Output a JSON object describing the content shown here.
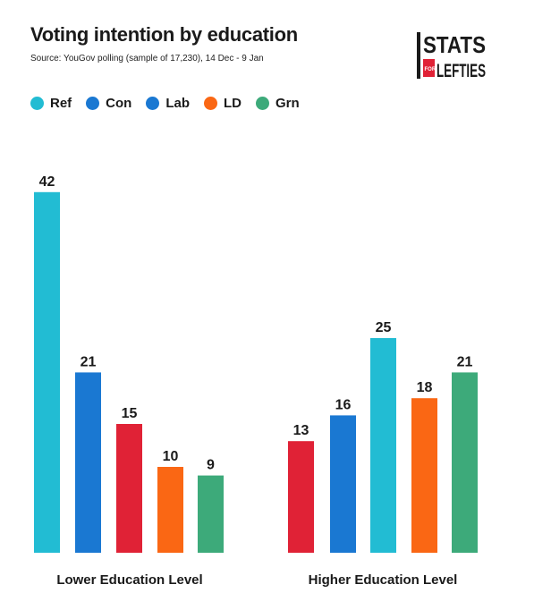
{
  "header": {
    "title": "Voting intention by education",
    "subtitle": "Source: YouGov polling (sample of 17,230), 14 Dec - 9 Jan"
  },
  "logo": {
    "line1": "STATS",
    "small": "FOR",
    "line2": "LEFTIES"
  },
  "colors": {
    "Ref": "#22bcd3",
    "Con": "#1a78d2",
    "Lab": "#e02236",
    "LD": "#fa6714",
    "Grn": "#3daa7a"
  },
  "chart_data": {
    "type": "bar",
    "title": "Voting intention by education",
    "subtitle": "Source: YouGov polling (sample of 17,230), 14 Dec - 9 Jan",
    "legend": [
      "Ref",
      "Con",
      "Lab",
      "LD",
      "Grn"
    ],
    "legend_position": "top-left",
    "grid": false,
    "ylim": [
      0,
      42
    ],
    "groups": [
      {
        "label": "Lower Education Level",
        "bars": [
          {
            "party": "Ref",
            "value": 42
          },
          {
            "party": "Con",
            "value": 21
          },
          {
            "party": "Lab",
            "value": 15
          },
          {
            "party": "LD",
            "value": 10
          },
          {
            "party": "Grn",
            "value": 9
          }
        ]
      },
      {
        "label": "Higher Education Level",
        "bars": [
          {
            "party": "Lab",
            "value": 13
          },
          {
            "party": "Con",
            "value": 16
          },
          {
            "party": "Ref",
            "value": 25
          },
          {
            "party": "LD",
            "value": 18
          },
          {
            "party": "Grn",
            "value": 21
          }
        ]
      }
    ]
  }
}
